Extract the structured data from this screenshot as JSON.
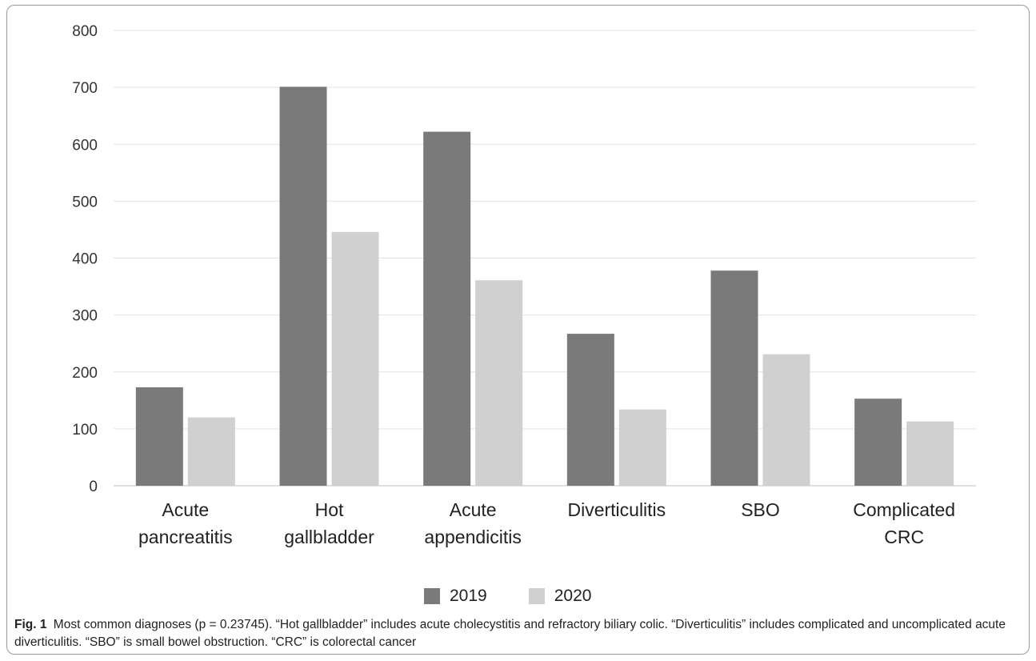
{
  "chart_data": {
    "type": "bar",
    "categories": [
      [
        "Acute",
        "pancreatitis"
      ],
      [
        "Hot",
        "gallbladder"
      ],
      [
        "Acute",
        "appendicitis"
      ],
      [
        "Diverticulitis"
      ],
      [
        "SBO"
      ],
      [
        "Complicated",
        "CRC"
      ]
    ],
    "series": [
      {
        "name": "2019",
        "color": "#7a7a7a",
        "values": [
          173,
          701,
          622,
          267,
          378,
          153
        ]
      },
      {
        "name": "2020",
        "color": "#d0d0d0",
        "values": [
          120,
          446,
          361,
          134,
          231,
          113
        ]
      }
    ],
    "yticks": [
      0,
      100,
      200,
      300,
      400,
      500,
      600,
      700,
      800
    ],
    "ylim": [
      0,
      800
    ],
    "grid": true,
    "legend_position": "bottom"
  },
  "caption": {
    "label": "Fig. 1",
    "text": "Most common diagnoses (p = 0.23745). “Hot gallbladder” includes acute cholecystitis and refractory biliary colic. “Diverticulitis” includes complicated and uncomplicated acute diverticulitis. “SBO” is small bowel obstruction. “CRC” is colorectal cancer"
  }
}
